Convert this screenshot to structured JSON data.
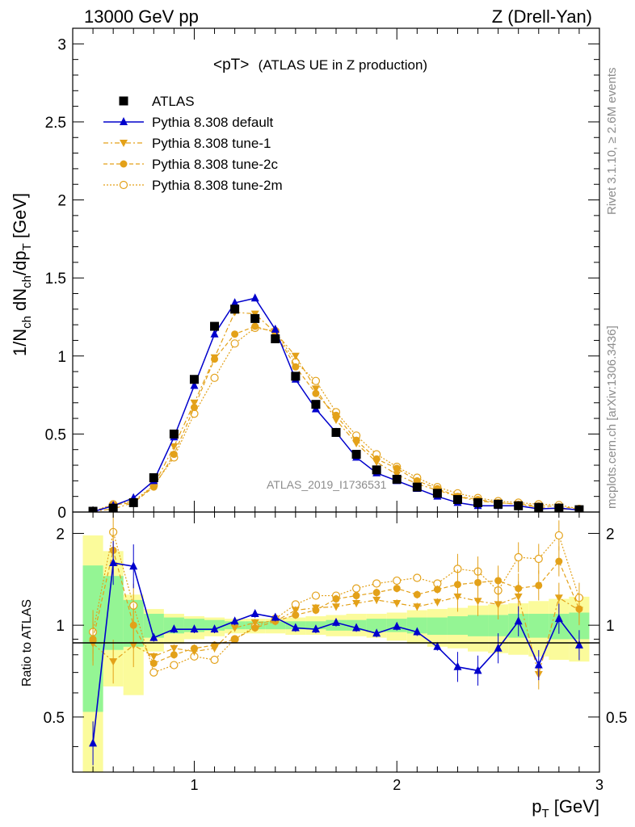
{
  "header": {
    "left": "13000 GeV pp",
    "right": "Z (Drell-Yan)"
  },
  "side_labels": {
    "rivet": "Rivet 3.1.10, ≥ 2.6M events",
    "mcplots": "mcplots.cern.ch [arXiv:1306.3436]"
  },
  "watermark": "ATLAS_2019_I1736531",
  "colors": {
    "atlas": "#000000",
    "default": "#0000cc",
    "tune": "#e3a119",
    "band_inner": "#94f594",
    "band_outer": "#fbfb9b"
  },
  "chart_data": [
    {
      "type": "scatter",
      "title_main": "<pT>",
      "title_sub": "(ATLAS UE in Z production)",
      "ylabel": "1/N_ch dN_ch/dp_T [GeV]",
      "xlim": [
        0.4,
        3.0
      ],
      "ylim": [
        0,
        3.1
      ],
      "yticks": [
        "0",
        "0.5",
        "1",
        "1.5",
        "2",
        "2.5",
        "3"
      ],
      "legend_position": "top-left",
      "x": [
        0.5,
        0.6,
        0.7,
        0.8,
        0.9,
        1.0,
        1.1,
        1.2,
        1.3,
        1.4,
        1.5,
        1.6,
        1.7,
        1.8,
        1.9,
        2.0,
        2.1,
        2.2,
        2.3,
        2.4,
        2.5,
        2.6,
        2.7,
        2.8,
        2.9
      ],
      "series": [
        {
          "name": "ATLAS",
          "marker": "square",
          "values": [
            0.005,
            0.025,
            0.06,
            0.22,
            0.5,
            0.85,
            1.19,
            1.3,
            1.24,
            1.11,
            0.87,
            0.69,
            0.51,
            0.37,
            0.27,
            0.21,
            0.16,
            0.12,
            0.08,
            0.06,
            0.05,
            0.04,
            0.03,
            0.025,
            0.015
          ]
        },
        {
          "name": "Pythia 8.308 default",
          "marker": "triangle-up",
          "values": [
            0.002,
            0.04,
            0.09,
            0.2,
            0.48,
            0.81,
            1.14,
            1.34,
            1.37,
            1.17,
            0.85,
            0.66,
            0.51,
            0.35,
            0.25,
            0.2,
            0.15,
            0.1,
            0.06,
            0.04,
            0.04,
            0.04,
            0.02,
            0.025,
            0.013
          ]
        },
        {
          "name": "Pythia 8.308 tune-1",
          "marker": "triangle-down",
          "values": [
            0.004,
            0.02,
            0.06,
            0.17,
            0.42,
            0.7,
            0.99,
            1.28,
            1.27,
            1.15,
            1.0,
            0.79,
            0.59,
            0.44,
            0.32,
            0.24,
            0.18,
            0.14,
            0.1,
            0.07,
            0.06,
            0.05,
            0.03,
            0.02,
            0.015
          ]
        },
        {
          "name": "Pythia 8.308 tune-2c",
          "marker": "circle",
          "values": [
            0.004,
            0.045,
            0.06,
            0.16,
            0.37,
            0.67,
            0.98,
            1.14,
            1.19,
            1.15,
            0.93,
            0.76,
            0.62,
            0.46,
            0.34,
            0.28,
            0.2,
            0.15,
            0.1,
            0.08,
            0.06,
            0.05,
            0.04,
            0.035,
            0.02
          ]
        },
        {
          "name": "Pythia 8.308 tune-2m",
          "marker": "open-circle",
          "values": [
            0.005,
            0.05,
            0.07,
            0.17,
            0.35,
            0.63,
            0.86,
            1.08,
            1.18,
            1.16,
            0.96,
            0.84,
            0.64,
            0.49,
            0.37,
            0.29,
            0.22,
            0.16,
            0.12,
            0.09,
            0.07,
            0.06,
            0.05,
            0.045,
            0.02
          ]
        }
      ]
    },
    {
      "type": "scatter",
      "ylabel": "Ratio to ATLAS",
      "xlabel": "p_T [GeV]",
      "xlim": [
        0.4,
        3.0
      ],
      "ylim": [
        0.33,
        2.35
      ],
      "yticks": [
        "0.5",
        "1",
        "2"
      ],
      "xticks": [
        "1",
        "2",
        "3"
      ],
      "x": [
        0.5,
        0.6,
        0.7,
        0.8,
        0.9,
        1.0,
        1.1,
        1.2,
        1.3,
        1.4,
        1.5,
        1.6,
        1.7,
        1.8,
        1.9,
        2.0,
        2.1,
        2.2,
        2.3,
        2.4,
        2.5,
        2.6,
        2.7,
        2.8,
        2.9
      ],
      "band_inner": [
        [
          0.52,
          1.57
        ],
        [
          0.83,
          1.45
        ],
        [
          0.85,
          1.21
        ],
        [
          0.91,
          1.09
        ],
        [
          0.94,
          1.06
        ],
        [
          0.95,
          1.05
        ],
        [
          0.96,
          1.04
        ],
        [
          0.97,
          1.03
        ],
        [
          0.97,
          1.03
        ],
        [
          0.97,
          1.03
        ],
        [
          0.97,
          1.03
        ],
        [
          0.97,
          1.03
        ],
        [
          0.96,
          1.04
        ],
        [
          0.96,
          1.04
        ],
        [
          0.95,
          1.05
        ],
        [
          0.95,
          1.05
        ],
        [
          0.94,
          1.06
        ],
        [
          0.93,
          1.06
        ],
        [
          0.93,
          1.07
        ],
        [
          0.92,
          1.08
        ],
        [
          0.92,
          1.08
        ],
        [
          0.91,
          1.09
        ],
        [
          0.91,
          1.09
        ],
        [
          0.9,
          1.09
        ],
        [
          0.9,
          1.1
        ]
      ],
      "band_outer": [
        [
          0.33,
          1.97
        ],
        [
          0.63,
          1.75
        ],
        [
          0.59,
          1.26
        ],
        [
          0.82,
          1.13
        ],
        [
          0.87,
          1.09
        ],
        [
          0.9,
          1.07
        ],
        [
          0.92,
          1.06
        ],
        [
          0.94,
          1.05
        ],
        [
          0.94,
          1.05
        ],
        [
          0.94,
          1.05
        ],
        [
          0.93,
          1.06
        ],
        [
          0.93,
          1.07
        ],
        [
          0.92,
          1.08
        ],
        [
          0.92,
          1.09
        ],
        [
          0.91,
          1.09
        ],
        [
          0.89,
          1.1
        ],
        [
          0.87,
          1.12
        ],
        [
          0.85,
          1.13
        ],
        [
          0.84,
          1.14
        ],
        [
          0.82,
          1.16
        ],
        [
          0.81,
          1.17
        ],
        [
          0.8,
          1.18
        ],
        [
          0.79,
          1.2
        ],
        [
          0.77,
          1.22
        ],
        [
          0.76,
          1.24
        ]
      ],
      "series": [
        {
          "name": "Pythia 8.308 default",
          "values": [
            0.41,
            1.6,
            1.56,
            0.91,
            0.97,
            0.97,
            0.97,
            1.03,
            1.09,
            1.06,
            0.98,
            0.97,
            1.02,
            0.98,
            0.94,
            0.99,
            0.95,
            0.85,
            0.73,
            0.71,
            0.84,
            1.03,
            0.74,
            1.05,
            0.86
          ]
        },
        {
          "name": "Pythia 8.308 tune-1",
          "values": [
            0.87,
            0.76,
            0.86,
            0.79,
            0.84,
            0.82,
            0.84,
            0.98,
            1.02,
            1.03,
            1.12,
            1.14,
            1.15,
            1.18,
            1.21,
            1.18,
            1.15,
            1.19,
            1.24,
            1.2,
            1.17,
            1.24,
            0.69,
            1.23,
            1.12
          ]
        },
        {
          "name": "Pythia 8.308 tune-2c",
          "values": [
            0.9,
            1.76,
            1.0,
            0.75,
            0.8,
            0.84,
            0.86,
            0.9,
            0.98,
            1.03,
            1.08,
            1.12,
            1.22,
            1.25,
            1.28,
            1.32,
            1.26,
            1.31,
            1.36,
            1.38,
            1.4,
            1.32,
            1.35,
            1.62,
            1.13
          ]
        },
        {
          "name": "Pythia 8.308 tune-2m",
          "values": [
            0.95,
            2.02,
            1.16,
            0.7,
            0.74,
            0.79,
            0.77,
            0.9,
            0.99,
            1.05,
            1.17,
            1.25,
            1.25,
            1.32,
            1.37,
            1.4,
            1.43,
            1.37,
            1.53,
            1.5,
            1.3,
            1.67,
            1.65,
            1.97,
            1.23
          ]
        }
      ]
    }
  ]
}
